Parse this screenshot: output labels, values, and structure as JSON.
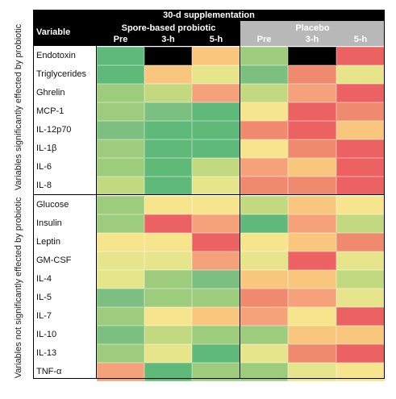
{
  "side_labels": {
    "significant": "Variables significantly effected by probiotic",
    "not_significant": "Variables not significantly effected by probiotic"
  },
  "header": {
    "title": "30-d supplementation",
    "variable": "Variable",
    "group_probiotic": "Spore-based probiotic",
    "group_placebo": "Placebo",
    "timepoints": [
      "Pre",
      "3-h",
      "5-h"
    ]
  },
  "colors": {
    "G1": "#5fba7a",
    "G2": "#7cc081",
    "G3": "#9ccc7c",
    "G4": "#c3d97f",
    "Y1": "#e6e58b",
    "Y2": "#f6e58c",
    "O1": "#f8c77d",
    "O2": "#f5a27a",
    "R1": "#ef8a6f",
    "R2": "#ec6262",
    "K": "#000000"
  },
  "rows": [
    {
      "name": "Endotoxin",
      "cells": [
        "G1",
        "K",
        "O1",
        "G3",
        "K",
        "R2"
      ]
    },
    {
      "name": "Triglycerides",
      "cells": [
        "G1",
        "O1",
        "Y1",
        "G2",
        "R1",
        "Y1"
      ]
    },
    {
      "name": "Ghrelin",
      "cells": [
        "G3",
        "G4",
        "O2",
        "G4",
        "O2",
        "R2"
      ]
    },
    {
      "name": "MCP-1",
      "cells": [
        "G3",
        "G2",
        "G1",
        "Y2",
        "R2",
        "R1"
      ]
    },
    {
      "name": "IL-12p70",
      "cells": [
        "G2",
        "G1",
        "G1",
        "R1",
        "R2",
        "O1"
      ]
    },
    {
      "name": "IL-1β",
      "cells": [
        "G3",
        "G1",
        "G1",
        "Y2",
        "R1",
        "R2"
      ]
    },
    {
      "name": "IL-6",
      "cells": [
        "G3",
        "G1",
        "G4",
        "O2",
        "O1",
        "R2"
      ]
    },
    {
      "name": "IL-8",
      "cells": [
        "G4",
        "G1",
        "Y1",
        "R1",
        "R1",
        "R2"
      ]
    },
    {
      "name": "Glucose",
      "cells": [
        "G3",
        "Y2",
        "Y2",
        "G4",
        "O1",
        "Y2"
      ]
    },
    {
      "name": "Insulin",
      "cells": [
        "G3",
        "R2",
        "O2",
        "G1",
        "O2",
        "G4"
      ]
    },
    {
      "name": "Leptin",
      "cells": [
        "Y2",
        "Y2",
        "R2",
        "Y2",
        "O1",
        "R1"
      ]
    },
    {
      "name": "GM-CSF",
      "cells": [
        "Y1",
        "Y1",
        "O2",
        "Y1",
        "R2",
        "Y1"
      ]
    },
    {
      "name": "IL-4",
      "cells": [
        "Y1",
        "G3",
        "G2",
        "O1",
        "O1",
        "G4"
      ]
    },
    {
      "name": "IL-5",
      "cells": [
        "G2",
        "G3",
        "G3",
        "R1",
        "O2",
        "Y1"
      ]
    },
    {
      "name": "IL-7",
      "cells": [
        "G3",
        "Y2",
        "O1",
        "O2",
        "Y2",
        "R2"
      ]
    },
    {
      "name": "IL-10",
      "cells": [
        "G2",
        "G4",
        "G3",
        "G3",
        "O1",
        "O1"
      ]
    },
    {
      "name": "IL-13",
      "cells": [
        "G3",
        "Y1",
        "G1",
        "Y1",
        "R1",
        "R2"
      ]
    },
    {
      "name": "TNF-α",
      "cells": [
        "O2",
        "G1",
        "G3",
        "G3",
        "Y1",
        "Y2"
      ]
    }
  ]
}
